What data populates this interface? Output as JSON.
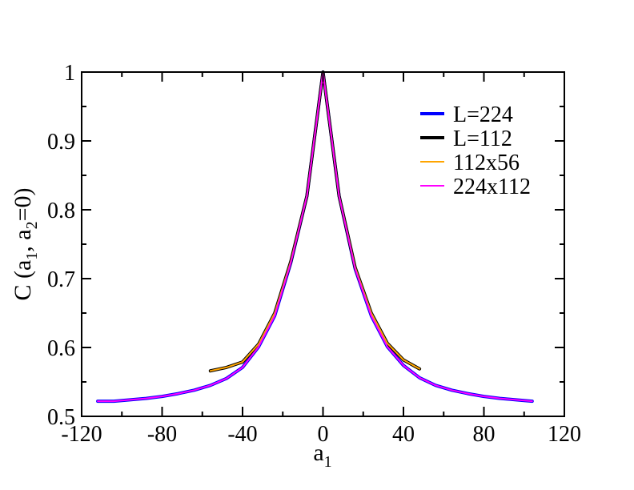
{
  "chart_data": {
    "type": "line",
    "xlabel": "a",
    "xlabel_sub": "1",
    "ylabel_parts": [
      "C (a",
      "1",
      ", a",
      "2",
      "=0)"
    ],
    "xlim": [
      -120,
      120
    ],
    "ylim": [
      0.5,
      1.0
    ],
    "xticks": [
      -120,
      -80,
      -40,
      0,
      40,
      80,
      120
    ],
    "xtick_labels": [
      "-120",
      "-80",
      "-40",
      "0",
      "40",
      "80",
      "120"
    ],
    "yticks": [
      0.5,
      0.6,
      0.7,
      0.8,
      0.9,
      1.0
    ],
    "ytick_labels": [
      "0.5",
      "0.6",
      "0.7",
      "0.8",
      "0.9",
      "1"
    ],
    "grid": false,
    "legend_position": "top-right",
    "series": [
      {
        "name": "L=224",
        "color": "#0000ff",
        "width": 4,
        "x": [
          -112,
          -104,
          -96,
          -88,
          -80,
          -72,
          -64,
          -56,
          -48,
          -40,
          -32,
          -24,
          -16,
          -8,
          0,
          8,
          16,
          24,
          32,
          40,
          48,
          56,
          64,
          72,
          80,
          88,
          96,
          104
        ],
        "y": [
          0.522,
          0.522,
          0.524,
          0.526,
          0.529,
          0.533,
          0.538,
          0.545,
          0.555,
          0.571,
          0.601,
          0.646,
          0.723,
          0.82,
          1.0,
          0.82,
          0.714,
          0.646,
          0.601,
          0.574,
          0.556,
          0.545,
          0.538,
          0.533,
          0.529,
          0.526,
          0.524,
          0.522
        ]
      },
      {
        "name": "L=112",
        "color": "#000000",
        "width": 4,
        "x": [
          -56,
          -48,
          -40,
          -32,
          -24,
          -16,
          -8,
          0,
          8,
          16,
          24,
          32,
          40,
          48
        ],
        "y": [
          0.566,
          0.571,
          0.579,
          0.605,
          0.65,
          0.725,
          0.82,
          1.0,
          0.82,
          0.716,
          0.65,
          0.606,
          0.582,
          0.569
        ]
      },
      {
        "name": "112x56",
        "color": "#ffa500",
        "width": 2,
        "x": [
          -56,
          -48,
          -40,
          -32,
          -24,
          -16,
          -8,
          0,
          8,
          16,
          24,
          32,
          40,
          48
        ],
        "y": [
          0.566,
          0.571,
          0.579,
          0.605,
          0.65,
          0.725,
          0.82,
          1.0,
          0.82,
          0.716,
          0.65,
          0.606,
          0.582,
          0.569
        ]
      },
      {
        "name": "224x112",
        "color": "#ff00ff",
        "width": 2,
        "x": [
          -112,
          -104,
          -96,
          -88,
          -80,
          -72,
          -64,
          -56,
          -48,
          -40,
          -32,
          -24,
          -16,
          -8,
          0,
          8,
          16,
          24,
          32,
          40,
          48,
          56,
          64,
          72,
          80,
          88,
          96,
          104
        ],
        "y": [
          0.522,
          0.522,
          0.524,
          0.526,
          0.529,
          0.533,
          0.538,
          0.545,
          0.555,
          0.571,
          0.601,
          0.646,
          0.723,
          0.82,
          1.0,
          0.82,
          0.714,
          0.646,
          0.601,
          0.574,
          0.556,
          0.545,
          0.538,
          0.533,
          0.529,
          0.526,
          0.524,
          0.522
        ]
      }
    ]
  }
}
